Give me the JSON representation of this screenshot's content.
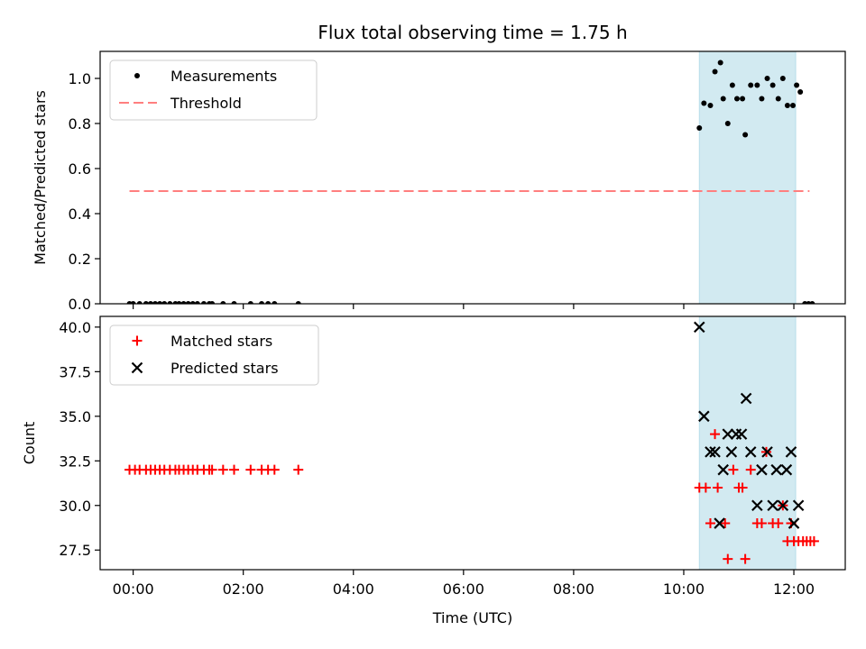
{
  "chart_data": [
    {
      "type": "scatter",
      "title": "Flux total observing time = 1.75 h",
      "xlabel": "",
      "ylabel": "Matched/Predicted stars",
      "xlim": [
        "23:24",
        "12:56"
      ],
      "ylim": [
        0.0,
        1.12
      ],
      "yticks": [
        "0.0",
        "0.2",
        "0.4",
        "0.6",
        "0.8",
        "1.0"
      ],
      "legend": {
        "placement": "top-left",
        "entries": [
          "Measurements",
          "Threshold"
        ]
      },
      "shaded_region": {
        "from": "10:17",
        "to": "12:02",
        "color": "#add8e6"
      },
      "threshold": {
        "name": "Threshold",
        "y": 0.5,
        "from": "23:56",
        "to": "12:17",
        "color": "#ff7f7f",
        "style": "dashed"
      },
      "series": [
        {
          "name": "Measurements",
          "color": "#000000",
          "points": [
            [
              "23:56",
              0.0
            ],
            [
              "00:00",
              0.0
            ],
            [
              "00:07",
              0.0
            ],
            [
              "00:14",
              0.0
            ],
            [
              "00:19",
              0.0
            ],
            [
              "00:24",
              0.0
            ],
            [
              "00:29",
              0.0
            ],
            [
              "00:34",
              0.0
            ],
            [
              "00:40",
              0.0
            ],
            [
              "00:46",
              0.0
            ],
            [
              "00:50",
              0.0
            ],
            [
              "00:55",
              0.0
            ],
            [
              "01:00",
              0.0
            ],
            [
              "01:05",
              0.0
            ],
            [
              "01:10",
              0.0
            ],
            [
              "01:17",
              0.0
            ],
            [
              "01:23",
              0.0
            ],
            [
              "01:26",
              0.0
            ],
            [
              "01:38",
              0.0
            ],
            [
              "01:50",
              0.0
            ],
            [
              "02:08",
              0.0
            ],
            [
              "02:20",
              0.0
            ],
            [
              "02:27",
              0.0
            ],
            [
              "02:34",
              0.0
            ],
            [
              "03:00",
              0.0
            ],
            [
              "10:17",
              0.78
            ],
            [
              "10:22",
              0.89
            ],
            [
              "10:29",
              0.88
            ],
            [
              "10:34",
              1.03
            ],
            [
              "10:40",
              1.07
            ],
            [
              "10:43",
              0.91
            ],
            [
              "10:48",
              0.8
            ],
            [
              "10:53",
              0.97
            ],
            [
              "10:58",
              0.91
            ],
            [
              "11:04",
              0.91
            ],
            [
              "11:07",
              0.75
            ],
            [
              "11:13",
              0.97
            ],
            [
              "11:20",
              0.97
            ],
            [
              "11:25",
              0.91
            ],
            [
              "11:31",
              1.0
            ],
            [
              "11:37",
              0.97
            ],
            [
              "11:43",
              0.91
            ],
            [
              "11:48",
              1.0
            ],
            [
              "11:53",
              0.88
            ],
            [
              "11:59",
              0.88
            ],
            [
              "12:03",
              0.97
            ],
            [
              "12:07",
              0.94
            ],
            [
              "12:12",
              0.0
            ],
            [
              "12:16",
              0.0
            ],
            [
              "12:20",
              0.0
            ]
          ]
        }
      ]
    },
    {
      "type": "scatter",
      "title": "",
      "xlabel": "Time (UTC)",
      "ylabel": "Count",
      "xlim": [
        "23:24",
        "12:56"
      ],
      "ylim": [
        26.4,
        40.6
      ],
      "xticks": [
        "00:00",
        "02:00",
        "04:00",
        "06:00",
        "08:00",
        "10:00",
        "12:00"
      ],
      "yticks": [
        "27.5",
        "30.0",
        "32.5",
        "35.0",
        "37.5",
        "40.0"
      ],
      "legend": {
        "placement": "top-left",
        "entries": [
          "Matched stars",
          "Predicted stars"
        ]
      },
      "shaded_region": {
        "from": "10:17",
        "to": "12:02",
        "color": "#add8e6"
      },
      "series": [
        {
          "name": "Matched stars",
          "color": "#ff0000",
          "marker": "plus",
          "points": [
            [
              "23:56",
              32
            ],
            [
              "00:02",
              32
            ],
            [
              "00:07",
              32
            ],
            [
              "00:14",
              32
            ],
            [
              "00:19",
              32
            ],
            [
              "00:24",
              32
            ],
            [
              "00:29",
              32
            ],
            [
              "00:34",
              32
            ],
            [
              "00:40",
              32
            ],
            [
              "00:46",
              32
            ],
            [
              "00:50",
              32
            ],
            [
              "00:55",
              32
            ],
            [
              "01:00",
              32
            ],
            [
              "01:05",
              32
            ],
            [
              "01:10",
              32
            ],
            [
              "01:17",
              32
            ],
            [
              "01:23",
              32
            ],
            [
              "01:26",
              32
            ],
            [
              "01:38",
              32
            ],
            [
              "01:50",
              32
            ],
            [
              "02:08",
              32
            ],
            [
              "02:20",
              32
            ],
            [
              "02:27",
              32
            ],
            [
              "02:34",
              32
            ],
            [
              "03:00",
              32
            ],
            [
              "10:17",
              31
            ],
            [
              "10:24",
              31
            ],
            [
              "10:29",
              29
            ],
            [
              "10:34",
              34
            ],
            [
              "10:37",
              31
            ],
            [
              "10:45",
              29
            ],
            [
              "10:48",
              27
            ],
            [
              "10:54",
              32
            ],
            [
              "11:00",
              31
            ],
            [
              "11:04",
              31
            ],
            [
              "11:07",
              27
            ],
            [
              "11:13",
              32
            ],
            [
              "11:20",
              29
            ],
            [
              "11:25",
              29
            ],
            [
              "11:30",
              33
            ],
            [
              "11:37",
              29
            ],
            [
              "11:43",
              29
            ],
            [
              "11:48",
              30
            ],
            [
              "11:53",
              28
            ],
            [
              "11:57",
              29
            ],
            [
              "12:00",
              28
            ],
            [
              "12:05",
              28
            ],
            [
              "12:10",
              28
            ],
            [
              "12:14",
              28
            ],
            [
              "12:18",
              28
            ],
            [
              "12:22",
              28
            ]
          ]
        },
        {
          "name": "Predicted stars",
          "color": "#000000",
          "marker": "x",
          "points": [
            [
              "10:17",
              40
            ],
            [
              "10:22",
              35
            ],
            [
              "10:29",
              33
            ],
            [
              "10:34",
              33
            ],
            [
              "10:39",
              29
            ],
            [
              "10:43",
              32
            ],
            [
              "10:48",
              34
            ],
            [
              "10:52",
              33
            ],
            [
              "10:57",
              34
            ],
            [
              "11:03",
              34
            ],
            [
              "11:08",
              36
            ],
            [
              "11:13",
              33
            ],
            [
              "11:20",
              30
            ],
            [
              "11:25",
              32
            ],
            [
              "11:31",
              33
            ],
            [
              "11:37",
              30
            ],
            [
              "11:41",
              32
            ],
            [
              "11:48",
              30
            ],
            [
              "11:52",
              32
            ],
            [
              "11:57",
              33
            ],
            [
              "12:00",
              29
            ],
            [
              "12:05",
              30
            ]
          ]
        }
      ]
    }
  ]
}
